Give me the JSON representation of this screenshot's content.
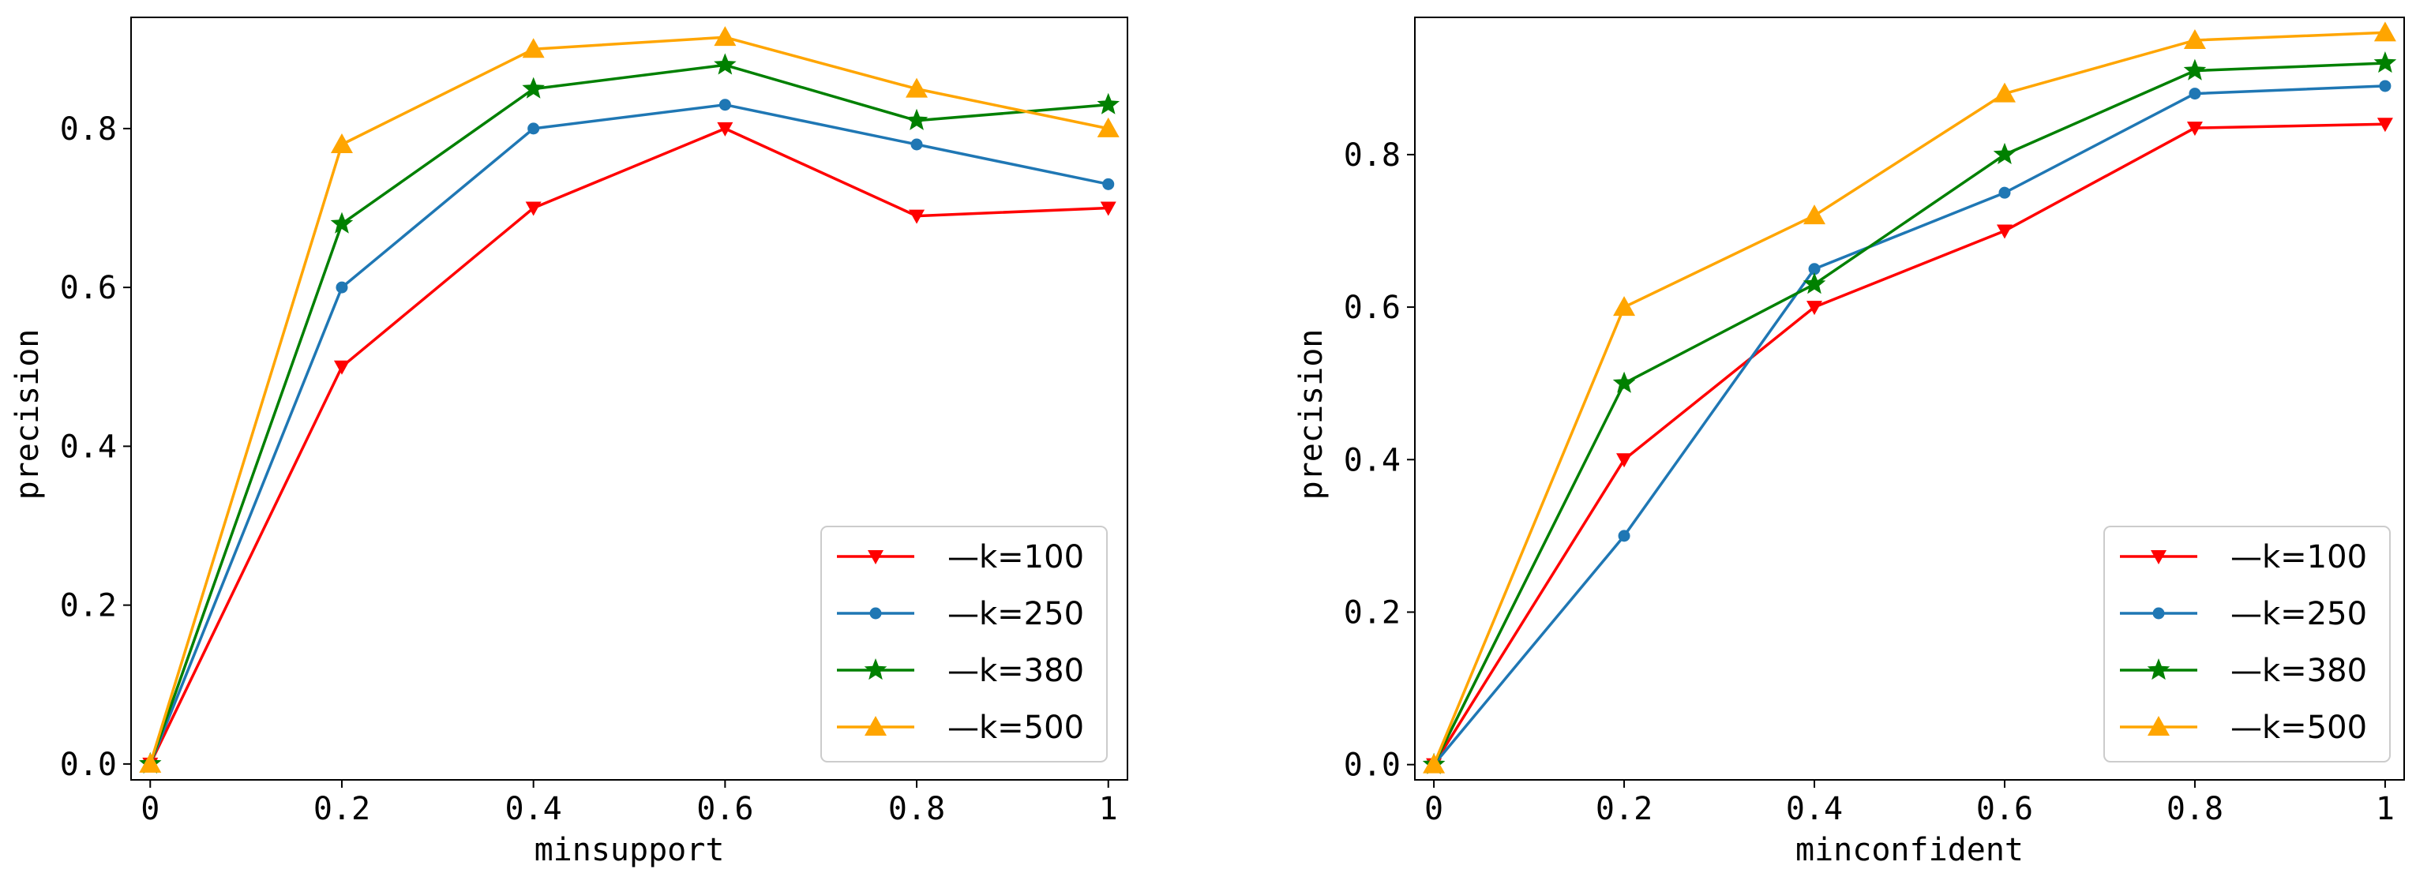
{
  "chart_data": [
    {
      "type": "line",
      "xlabel": "minsupport",
      "ylabel": "precision",
      "x": [
        0,
        0.2,
        0.4,
        0.6,
        0.8,
        1
      ],
      "xtick_labels": [
        "0",
        "0.2",
        "0.4",
        "0.6",
        "0.8",
        "1"
      ],
      "ytick_values": [
        0.0,
        0.2,
        0.4,
        0.6,
        0.8
      ],
      "ytick_labels": [
        "0.0",
        "0.2",
        "0.4",
        "0.6",
        "0.8"
      ],
      "xlim": [
        -0.02,
        1.02
      ],
      "ylim": [
        -0.02,
        0.94
      ],
      "legend_position": "lower-right",
      "series": [
        {
          "name": "—k=100",
          "color": "#ff0000",
          "marker": "triangle-down",
          "values": [
            0,
            0.5,
            0.7,
            0.8,
            0.69,
            0.7
          ]
        },
        {
          "name": "—k=250",
          "color": "#1f77b4",
          "marker": "circle",
          "values": [
            0,
            0.6,
            0.8,
            0.83,
            0.78,
            0.73
          ]
        },
        {
          "name": "—k=380",
          "color": "#008000",
          "marker": "star",
          "values": [
            0,
            0.68,
            0.85,
            0.88,
            0.81,
            0.83
          ]
        },
        {
          "name": "—k=500",
          "color": "#ffa500",
          "marker": "triangle-up",
          "values": [
            0,
            0.78,
            0.9,
            0.915,
            0.85,
            0.8
          ]
        }
      ]
    },
    {
      "type": "line",
      "xlabel": "minconfident",
      "ylabel": "precision",
      "x": [
        0,
        0.2,
        0.4,
        0.6,
        0.8,
        1
      ],
      "xtick_labels": [
        "0",
        "0.2",
        "0.4",
        "0.6",
        "0.8",
        "1"
      ],
      "ytick_values": [
        0.0,
        0.2,
        0.4,
        0.6,
        0.8
      ],
      "ytick_labels": [
        "0.0",
        "0.2",
        "0.4",
        "0.6",
        "0.8"
      ],
      "xlim": [
        -0.02,
        1.02
      ],
      "ylim": [
        -0.02,
        0.98
      ],
      "legend_position": "lower-right",
      "series": [
        {
          "name": "—k=100",
          "color": "#ff0000",
          "marker": "triangle-down",
          "values": [
            0,
            0.4,
            0.6,
            0.7,
            0.835,
            0.84
          ]
        },
        {
          "name": "—k=250",
          "color": "#1f77b4",
          "marker": "circle",
          "values": [
            0,
            0.3,
            0.65,
            0.75,
            0.88,
            0.89
          ]
        },
        {
          "name": "—k=380",
          "color": "#008000",
          "marker": "star",
          "values": [
            0,
            0.5,
            0.63,
            0.8,
            0.91,
            0.92
          ]
        },
        {
          "name": "—k=500",
          "color": "#ffa500",
          "marker": "triangle-up",
          "values": [
            0,
            0.6,
            0.72,
            0.88,
            0.95,
            0.96
          ]
        }
      ]
    }
  ]
}
